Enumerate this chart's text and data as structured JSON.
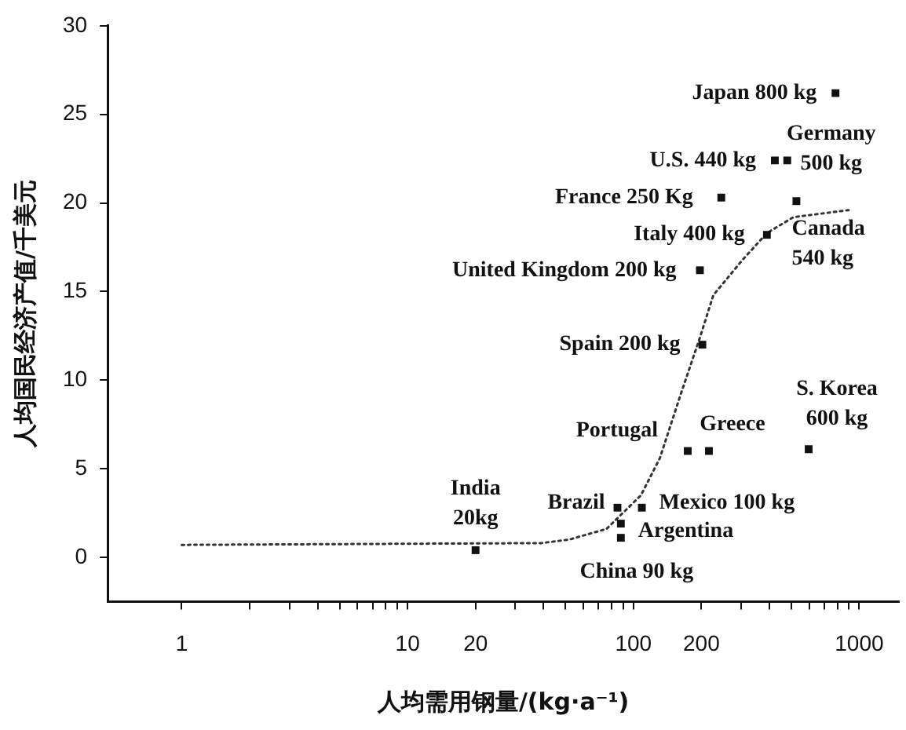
{
  "chart_data": {
    "type": "scatter",
    "xlabel": "人均需用钢量/(kg·a⁻¹)",
    "ylabel": "人均国民经济产值/千美元",
    "log": "x",
    "xlim": [
      0.47,
      1500
    ],
    "xticks": [
      1,
      {
        "value": 2,
        "label": null
      },
      {
        "value": 3,
        "label": null
      },
      {
        "value": 4,
        "label": null
      },
      {
        "value": 5,
        "label": null
      },
      {
        "value": 6,
        "label": null
      },
      {
        "value": 7,
        "label": null
      },
      {
        "value": 8,
        "label": null
      },
      {
        "value": 9,
        "label": null
      },
      10,
      20,
      {
        "value": 30,
        "label": null
      },
      {
        "value": 40,
        "label": null
      },
      {
        "value": 50,
        "label": null
      },
      {
        "value": 60,
        "label": null
      },
      {
        "value": 70,
        "label": null
      },
      {
        "value": 80,
        "label": null
      },
      {
        "value": 90,
        "label": null
      },
      100,
      200,
      {
        "value": 300,
        "label": null
      },
      {
        "value": 400,
        "label": null
      },
      {
        "value": 500,
        "label": null
      },
      {
        "value": 600,
        "label": null
      },
      {
        "value": 700,
        "label": null
      },
      {
        "value": 800,
        "label": null
      },
      {
        "value": 900,
        "label": null
      },
      1000
    ],
    "ylim": [
      -2.5,
      30
    ],
    "yticks": [
      0,
      5,
      10,
      15,
      20,
      25,
      30
    ],
    "grid": false,
    "legend": false,
    "series": [
      {
        "type": "scatter",
        "color": "#111111",
        "marker": "square",
        "x": [
          785,
          480,
          423,
          245,
          390,
          527,
          197,
          202,
          174,
          216,
          597,
          20,
          85,
          109,
          88,
          88
        ],
        "values": [
          26.2,
          22.4,
          22.4,
          20.3,
          18.2,
          20.1,
          16.2,
          12,
          6,
          6,
          6.1,
          0.4,
          2.8,
          2.8,
          1.9,
          1.1
        ]
      },
      {
        "type": "line",
        "color": "#333333",
        "line_style": "dotted",
        "marker": "none",
        "x": [
          1,
          39,
          52,
          76,
          108,
          131,
          162,
          197,
          226,
          305,
          390,
          512,
          908
        ],
        "values": [
          0.7,
          0.8,
          1,
          1.6,
          3.5,
          5.6,
          9.2,
          12.4,
          14.8,
          16.8,
          18.3,
          19.2,
          19.6
        ]
      }
    ],
    "annotations": [
      {
        "text": "Japan 800 kg",
        "x": 785,
        "y": 26.2
      },
      {
        "text": "Germany\n500 kg",
        "x": 480,
        "y": 22.4
      },
      {
        "text": "U.S. 440 kg",
        "x": 423,
        "y": 22.4
      },
      {
        "text": "France 250 Kg",
        "x": 245,
        "y": 20.3
      },
      {
        "text": "Italy 400 kg",
        "x": 390,
        "y": 18.2
      },
      {
        "text": "Canada\n540 kg",
        "x": 527,
        "y": 20.1
      },
      {
        "text": "United Kingdom 200 kg",
        "x": 197,
        "y": 16.2
      },
      {
        "text": "Spain 200 kg",
        "x": 202,
        "y": 12
      },
      {
        "text": "Portugal",
        "x": 174,
        "y": 6
      },
      {
        "text": "Greece",
        "x": 216,
        "y": 6
      },
      {
        "text": "S. Korea\n600 kg",
        "x": 597,
        "y": 6.1
      },
      {
        "text": "India\n20kg",
        "x": 20,
        "y": 0.4
      },
      {
        "text": "Brazil",
        "x": 85,
        "y": 2.8
      },
      {
        "text": "Mexico 100 kg",
        "x": 109,
        "y": 2.8
      },
      {
        "text": "Argentina",
        "x": 88,
        "y": 1.9
      },
      {
        "text": "China 90 kg",
        "x": 88,
        "y": 1.1
      }
    ]
  }
}
